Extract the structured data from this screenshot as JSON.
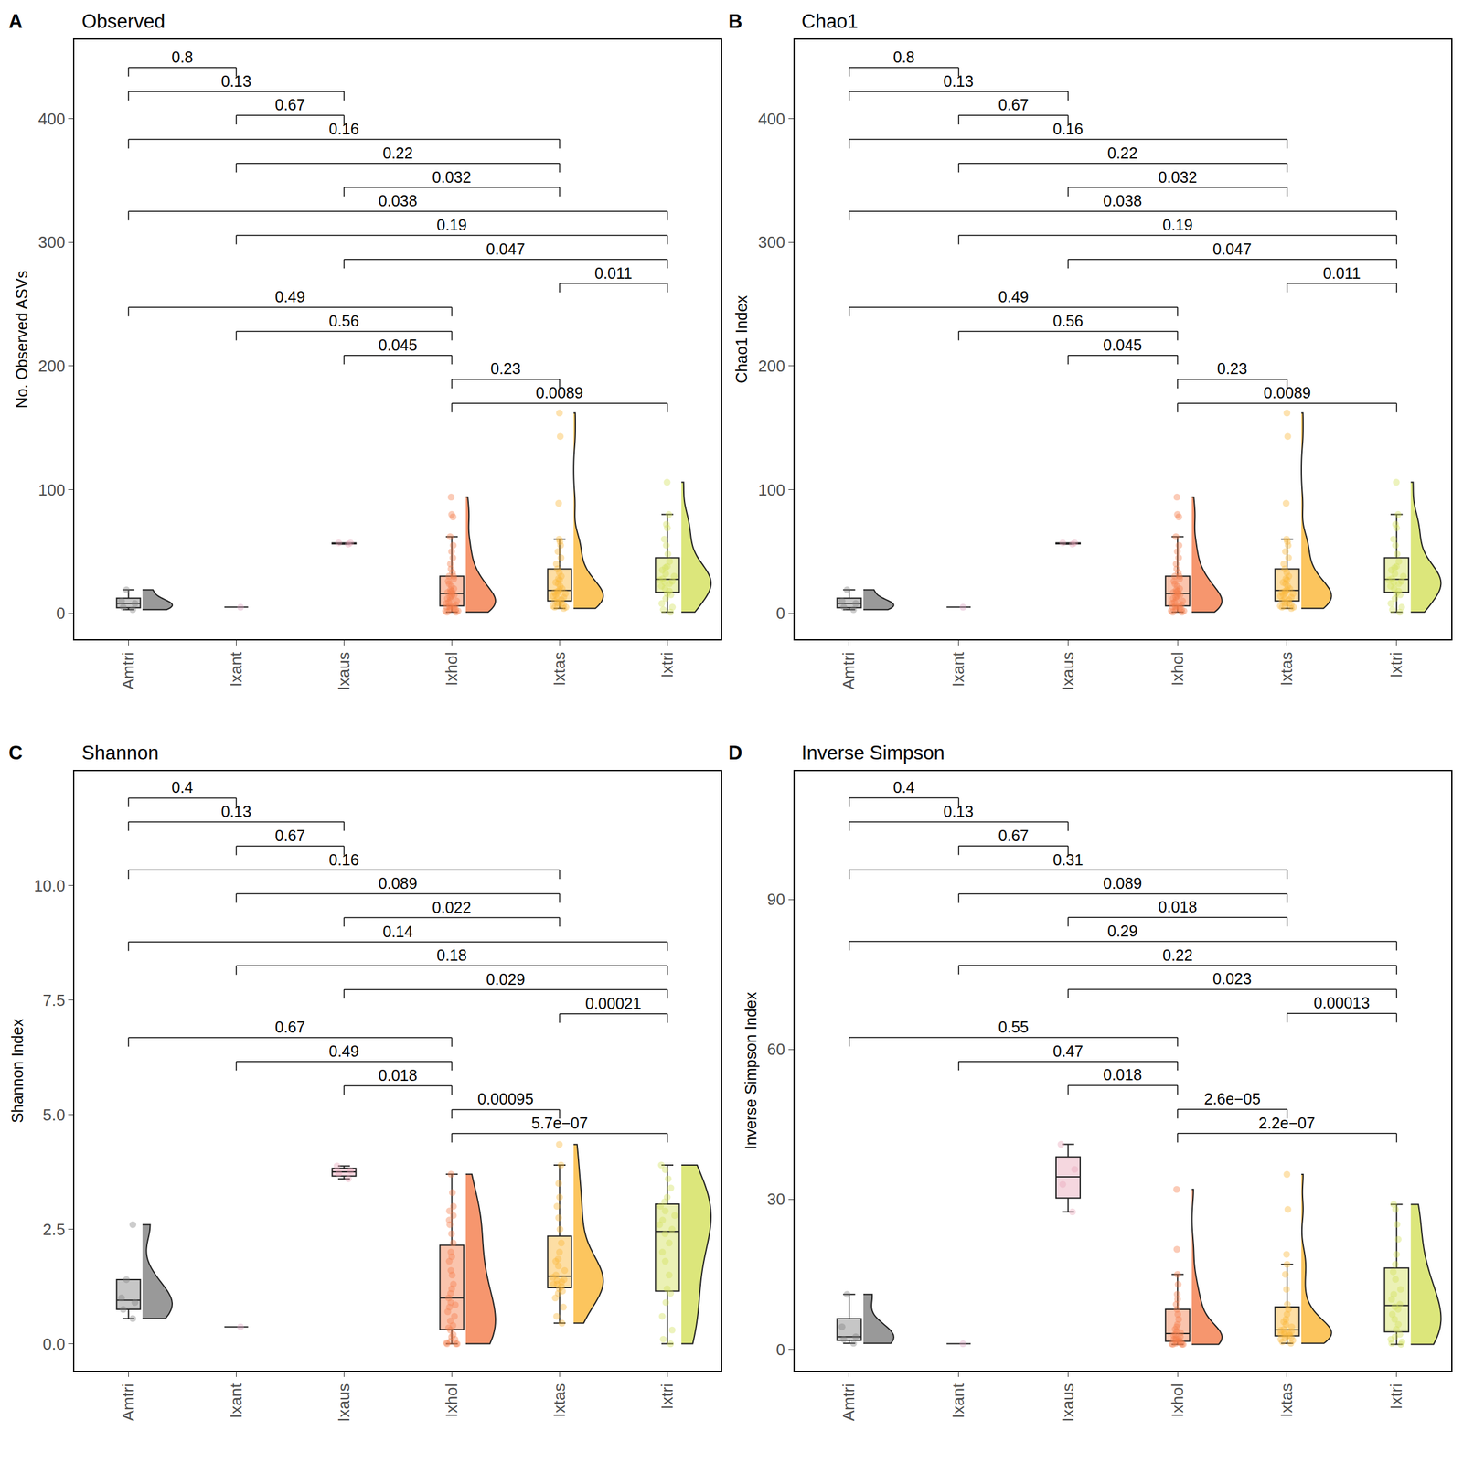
{
  "chart_data": [
    {
      "type": "box",
      "panel_label": "A",
      "title": "Observed",
      "y_label": "No. Observed ASVs",
      "categories": [
        "Amtri",
        "Ixant",
        "Ixaus",
        "Ixhol",
        "Ixtas",
        "Ixtri"
      ],
      "colors": [
        "#808080",
        "#d9a3c0",
        "#e8a6b8",
        "#f47c4a",
        "#fbb636",
        "#d3e05a"
      ],
      "values": [
        [
          3,
          5,
          8,
          10,
          19
        ],
        [
          5
        ],
        [
          56,
          57,
          57
        ],
        [
          1,
          1,
          2,
          2,
          3,
          3,
          4,
          4,
          5,
          5,
          6,
          6,
          7,
          8,
          9,
          10,
          11,
          12,
          13,
          14,
          15,
          16,
          17,
          17,
          18,
          19,
          20,
          22,
          24,
          26,
          28,
          30,
          30,
          33,
          36,
          40,
          45,
          50,
          55,
          62,
          78,
          80,
          94
        ],
        [
          4,
          5,
          5,
          6,
          6,
          7,
          8,
          8,
          9,
          10,
          11,
          12,
          13,
          14,
          15,
          16,
          17,
          17,
          18,
          19,
          20,
          22,
          24,
          25,
          27,
          28,
          30,
          33,
          36,
          40,
          45,
          50,
          55,
          58,
          60,
          89,
          143,
          162
        ],
        [
          1,
          3,
          5,
          8,
          12,
          15,
          16,
          18,
          20,
          22,
          24,
          25,
          26,
          27,
          28,
          30,
          32,
          35,
          37,
          38,
          42,
          48,
          55,
          60,
          69,
          72,
          80,
          106
        ]
      ],
      "ylim": [
        -21,
        464
      ],
      "yticks": [
        0,
        100,
        200,
        300,
        400
      ],
      "brackets": [
        {
          "from": "Amtri",
          "to": "Ixant",
          "y": 441.4,
          "label": "0.8"
        },
        {
          "from": "Amtri",
          "to": "Ixaus",
          "y": 422.0,
          "label": "0.13"
        },
        {
          "from": "Ixant",
          "to": "Ixaus",
          "y": 402.6,
          "label": "0.67"
        },
        {
          "from": "Amtri",
          "to": "Ixtas",
          "y": 383.2,
          "label": "0.16"
        },
        {
          "from": "Ixant",
          "to": "Ixtas",
          "y": 363.8,
          "label": "0.22"
        },
        {
          "from": "Ixaus",
          "to": "Ixtas",
          "y": 344.4,
          "label": "0.032"
        },
        {
          "from": "Amtri",
          "to": "Ixtri",
          "y": 325.0,
          "label": "0.038"
        },
        {
          "from": "Ixant",
          "to": "Ixtri",
          "y": 305.6,
          "label": "0.19"
        },
        {
          "from": "Ixaus",
          "to": "Ixtri",
          "y": 286.2,
          "label": "0.047"
        },
        {
          "from": "Ixtas",
          "to": "Ixtri",
          "y": 266.8,
          "label": "0.011"
        },
        {
          "from": "Amtri",
          "to": "Ixhol",
          "y": 247.4,
          "label": "0.49"
        },
        {
          "from": "Ixant",
          "to": "Ixhol",
          "y": 228.0,
          "label": "0.56"
        },
        {
          "from": "Ixaus",
          "to": "Ixhol",
          "y": 208.6,
          "label": "0.045"
        },
        {
          "from": "Ixhol",
          "to": "Ixtas",
          "y": 189.2,
          "label": "0.23"
        },
        {
          "from": "Ixhol",
          "to": "Ixtri",
          "y": 169.8,
          "label": "0.0089"
        }
      ]
    },
    {
      "type": "box",
      "panel_label": "B",
      "title": "Chao1",
      "y_label": "Chao1 Index",
      "categories": [
        "Amtri",
        "Ixant",
        "Ixaus",
        "Ixhol",
        "Ixtas",
        "Ixtri"
      ],
      "colors": [
        "#808080",
        "#d9a3c0",
        "#e8a6b8",
        "#f47c4a",
        "#fbb636",
        "#d3e05a"
      ],
      "values": [
        [
          3,
          5,
          8,
          10,
          19
        ],
        [
          5
        ],
        [
          56,
          57,
          57
        ],
        [
          1,
          1,
          2,
          2,
          3,
          3,
          4,
          4,
          5,
          5,
          6,
          6,
          7,
          8,
          9,
          10,
          11,
          12,
          13,
          14,
          15,
          16,
          17,
          17,
          18,
          19,
          20,
          22,
          24,
          26,
          28,
          30,
          30,
          33,
          36,
          40,
          45,
          50,
          55,
          62,
          78,
          80,
          94
        ],
        [
          4,
          5,
          5,
          6,
          6,
          7,
          8,
          8,
          9,
          10,
          11,
          12,
          13,
          14,
          15,
          16,
          17,
          17,
          18,
          19,
          20,
          22,
          24,
          25,
          27,
          28,
          30,
          33,
          36,
          40,
          45,
          50,
          55,
          58,
          60,
          89,
          143,
          162
        ],
        [
          1,
          3,
          5,
          8,
          12,
          15,
          16,
          18,
          20,
          22,
          24,
          25,
          26,
          27,
          28,
          30,
          32,
          35,
          37,
          38,
          42,
          48,
          55,
          60,
          69,
          72,
          80,
          106
        ]
      ],
      "ylim": [
        -21,
        464
      ],
      "yticks": [
        0,
        100,
        200,
        300,
        400
      ],
      "brackets": [
        {
          "from": "Amtri",
          "to": "Ixant",
          "y": 441.4,
          "label": "0.8"
        },
        {
          "from": "Amtri",
          "to": "Ixaus",
          "y": 422.0,
          "label": "0.13"
        },
        {
          "from": "Ixant",
          "to": "Ixaus",
          "y": 402.6,
          "label": "0.67"
        },
        {
          "from": "Amtri",
          "to": "Ixtas",
          "y": 383.2,
          "label": "0.16"
        },
        {
          "from": "Ixant",
          "to": "Ixtas",
          "y": 363.8,
          "label": "0.22"
        },
        {
          "from": "Ixaus",
          "to": "Ixtas",
          "y": 344.4,
          "label": "0.032"
        },
        {
          "from": "Amtri",
          "to": "Ixtri",
          "y": 325.0,
          "label": "0.038"
        },
        {
          "from": "Ixant",
          "to": "Ixtri",
          "y": 305.6,
          "label": "0.19"
        },
        {
          "from": "Ixaus",
          "to": "Ixtri",
          "y": 286.2,
          "label": "0.047"
        },
        {
          "from": "Ixtas",
          "to": "Ixtri",
          "y": 266.8,
          "label": "0.011"
        },
        {
          "from": "Amtri",
          "to": "Ixhol",
          "y": 247.4,
          "label": "0.49"
        },
        {
          "from": "Ixant",
          "to": "Ixhol",
          "y": 228.0,
          "label": "0.56"
        },
        {
          "from": "Ixaus",
          "to": "Ixhol",
          "y": 208.6,
          "label": "0.045"
        },
        {
          "from": "Ixhol",
          "to": "Ixtas",
          "y": 189.2,
          "label": "0.23"
        },
        {
          "from": "Ixhol",
          "to": "Ixtri",
          "y": 169.8,
          "label": "0.0089"
        }
      ]
    },
    {
      "type": "box",
      "panel_label": "C",
      "title": "Shannon",
      "y_label": "Shannon Index",
      "categories": [
        "Amtri",
        "Ixant",
        "Ixaus",
        "Ixhol",
        "Ixtas",
        "Ixtri"
      ],
      "colors": [
        "#808080",
        "#d9a3c0",
        "#e8a6b8",
        "#f47c4a",
        "#fbb636",
        "#d3e05a"
      ],
      "values": [
        [
          0.55,
          0.75,
          0.9,
          1.0,
          1.4,
          2.6
        ],
        [
          0.37
        ],
        [
          3.6,
          3.72,
          3.78,
          3.88
        ],
        [
          0,
          0,
          0,
          0.02,
          0.05,
          0.1,
          0.15,
          0.2,
          0.3,
          0.35,
          0.4,
          0.5,
          0.6,
          0.7,
          0.8,
          0.85,
          0.9,
          1.0,
          1.1,
          1.2,
          1.3,
          1.5,
          1.6,
          1.8,
          1.9,
          2.0,
          2.2,
          2.4,
          2.6,
          2.7,
          2.8,
          2.9,
          3.0,
          3.3,
          3.7
        ],
        [
          0.45,
          0.6,
          0.8,
          1.0,
          1.1,
          1.15,
          1.2,
          1.25,
          1.3,
          1.3,
          1.35,
          1.38,
          1.4,
          1.45,
          1.5,
          1.6,
          1.7,
          1.8,
          1.85,
          2.0,
          2.2,
          2.5,
          2.75,
          3.0,
          3.2,
          3.5,
          3.9,
          4.35
        ],
        [
          0,
          0.1,
          0.3,
          0.6,
          0.9,
          1.1,
          1.2,
          1.5,
          1.8,
          2.0,
          2.2,
          2.4,
          2.5,
          2.6,
          2.7,
          2.8,
          2.9,
          3.0,
          3.1,
          3.2,
          3.4,
          3.6,
          3.8,
          3.9
        ]
      ],
      "ylim": [
        -0.59,
        12.5
      ],
      "yticks": [
        {
          "value": 0,
          "label": "0.0"
        },
        2.5,
        {
          "value": 5,
          "label": "5.0"
        },
        7.5,
        {
          "value": 10,
          "label": "10.0"
        }
      ],
      "brackets": [
        {
          "from": "Amtri",
          "to": "Ixant",
          "y": 11.91,
          "label": "0.4"
        },
        {
          "from": "Amtri",
          "to": "Ixaus",
          "y": 11.39,
          "label": "0.13"
        },
        {
          "from": "Ixant",
          "to": "Ixaus",
          "y": 10.86,
          "label": "0.67"
        },
        {
          "from": "Amtri",
          "to": "Ixtas",
          "y": 10.34,
          "label": "0.16"
        },
        {
          "from": "Ixant",
          "to": "Ixtas",
          "y": 9.82,
          "label": "0.089"
        },
        {
          "from": "Ixaus",
          "to": "Ixtas",
          "y": 9.3,
          "label": "0.022"
        },
        {
          "from": "Amtri",
          "to": "Ixtri",
          "y": 8.77,
          "label": "0.14"
        },
        {
          "from": "Ixant",
          "to": "Ixtri",
          "y": 8.25,
          "label": "0.18"
        },
        {
          "from": "Ixaus",
          "to": "Ixtri",
          "y": 7.73,
          "label": "0.029"
        },
        {
          "from": "Ixtas",
          "to": "Ixtri",
          "y": 7.2,
          "label": "0.00021"
        },
        {
          "from": "Amtri",
          "to": "Ixhol",
          "y": 6.68,
          "label": "0.67"
        },
        {
          "from": "Ixant",
          "to": "Ixhol",
          "y": 6.16,
          "label": "0.49"
        },
        {
          "from": "Ixaus",
          "to": "Ixhol",
          "y": 5.63,
          "label": "0.018"
        },
        {
          "from": "Ixhol",
          "to": "Ixtas",
          "y": 5.11,
          "label": "0.00095"
        },
        {
          "from": "Ixhol",
          "to": "Ixtri",
          "y": 4.59,
          "label": "5.7e−07"
        }
      ]
    },
    {
      "type": "box",
      "panel_label": "D",
      "title": "Inverse Simpson",
      "y_label": "Inverse Simpson Index",
      "categories": [
        "Amtri",
        "Ixant",
        "Ixaus",
        "Ixhol",
        "Ixtas",
        "Ixtri"
      ],
      "colors": [
        "#808080",
        "#d9a3c0",
        "#e8a6b8",
        "#f47c4a",
        "#fbb636",
        "#d3e05a"
      ],
      "values": [
        [
          1.2,
          2,
          2.5,
          4.5,
          11
        ],
        [
          1.1
        ],
        [
          27.5,
          33,
          36,
          41
        ],
        [
          1,
          1,
          1,
          1.1,
          1.2,
          1.3,
          1.5,
          1.6,
          1.8,
          2,
          2,
          2.2,
          2.5,
          2.8,
          3,
          3.3,
          3.6,
          4,
          4.5,
          5,
          6,
          7,
          8,
          9,
          10,
          11,
          13,
          15,
          20,
          32
        ],
        [
          1.2,
          1.5,
          1.8,
          2,
          2.2,
          2.4,
          2.6,
          2.8,
          3,
          3,
          3.2,
          3.4,
          3.6,
          3.8,
          4,
          4.5,
          5,
          5.5,
          6,
          7,
          8,
          9,
          12,
          15,
          17,
          19,
          28,
          35
        ],
        [
          1,
          1.2,
          1.5,
          2,
          2.5,
          3,
          4,
          5,
          6,
          7,
          8,
          8.5,
          9,
          10,
          11,
          12,
          14,
          15.5,
          17,
          19,
          22,
          25,
          28,
          29
        ]
      ],
      "ylim": [
        -4.3,
        115.7
      ],
      "yticks": [
        0,
        30,
        60,
        90
      ],
      "brackets": [
        {
          "from": "Amtri",
          "to": "Ixant",
          "y": 110.3,
          "label": "0.4"
        },
        {
          "from": "Amtri",
          "to": "Ixaus",
          "y": 105.5,
          "label": "0.13"
        },
        {
          "from": "Ixant",
          "to": "Ixaus",
          "y": 100.7,
          "label": "0.67"
        },
        {
          "from": "Amtri",
          "to": "Ixtas",
          "y": 95.9,
          "label": "0.31"
        },
        {
          "from": "Ixant",
          "to": "Ixtas",
          "y": 91.1,
          "label": "0.089"
        },
        {
          "from": "Ixaus",
          "to": "Ixtas",
          "y": 86.4,
          "label": "0.018"
        },
        {
          "from": "Amtri",
          "to": "Ixtri",
          "y": 81.6,
          "label": "0.29"
        },
        {
          "from": "Ixant",
          "to": "Ixtri",
          "y": 76.8,
          "label": "0.22"
        },
        {
          "from": "Ixaus",
          "to": "Ixtri",
          "y": 72.0,
          "label": "0.023"
        },
        {
          "from": "Ixtas",
          "to": "Ixtri",
          "y": 67.2,
          "label": "0.00013"
        },
        {
          "from": "Amtri",
          "to": "Ixhol",
          "y": 62.4,
          "label": "0.55"
        },
        {
          "from": "Ixant",
          "to": "Ixhol",
          "y": 57.6,
          "label": "0.47"
        },
        {
          "from": "Ixaus",
          "to": "Ixhol",
          "y": 52.8,
          "label": "0.018"
        },
        {
          "from": "Ixhol",
          "to": "Ixtas",
          "y": 48.0,
          "label": "2.6e−05"
        },
        {
          "from": "Ixhol",
          "to": "Ixtri",
          "y": 43.2,
          "label": "2.2e−07"
        }
      ]
    }
  ]
}
